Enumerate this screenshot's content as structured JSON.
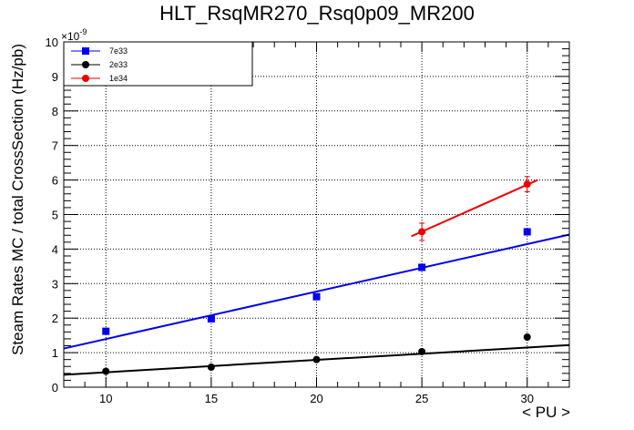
{
  "chart_data": {
    "type": "scatter",
    "title": "HLT_RsqMR270_Rsq0p09_MR200",
    "xlabel": "< PU >",
    "ylabel": "Steam Rates MC / total CrossSection (Hz/pb)",
    "y_exponent": "×10",
    "y_exponent_power": "-9",
    "xlim": [
      8,
      32
    ],
    "ylim": [
      0,
      10
    ],
    "x_ticks": [
      10,
      15,
      20,
      25,
      30
    ],
    "y_ticks": [
      0,
      1,
      2,
      3,
      4,
      5,
      6,
      7,
      8,
      9,
      10
    ],
    "grid": true,
    "legend_position": "top-left",
    "series": [
      {
        "name": "7e33",
        "color": "#0000ee",
        "marker": "square",
        "x": [
          10,
          15,
          20,
          25,
          30
        ],
        "y": [
          1.62,
          1.98,
          2.62,
          3.47,
          4.5
        ],
        "fit": [
          [
            8,
            1.12
          ],
          [
            32,
            4.42
          ]
        ]
      },
      {
        "name": "2e33",
        "color": "#000000",
        "marker": "circle",
        "x": [
          10,
          15,
          20,
          25,
          30
        ],
        "y": [
          0.46,
          0.58,
          0.8,
          1.03,
          1.45
        ],
        "fit": [
          [
            8,
            0.36
          ],
          [
            32,
            1.22
          ]
        ]
      },
      {
        "name": "1e34",
        "color": "#ee0000",
        "marker": "circle",
        "x": [
          25,
          30
        ],
        "y": [
          4.5,
          5.88
        ],
        "yerr": [
          0.25,
          0.22
        ],
        "fit": [
          [
            24.5,
            4.37
          ],
          [
            30.5,
            6.0
          ]
        ]
      }
    ]
  }
}
